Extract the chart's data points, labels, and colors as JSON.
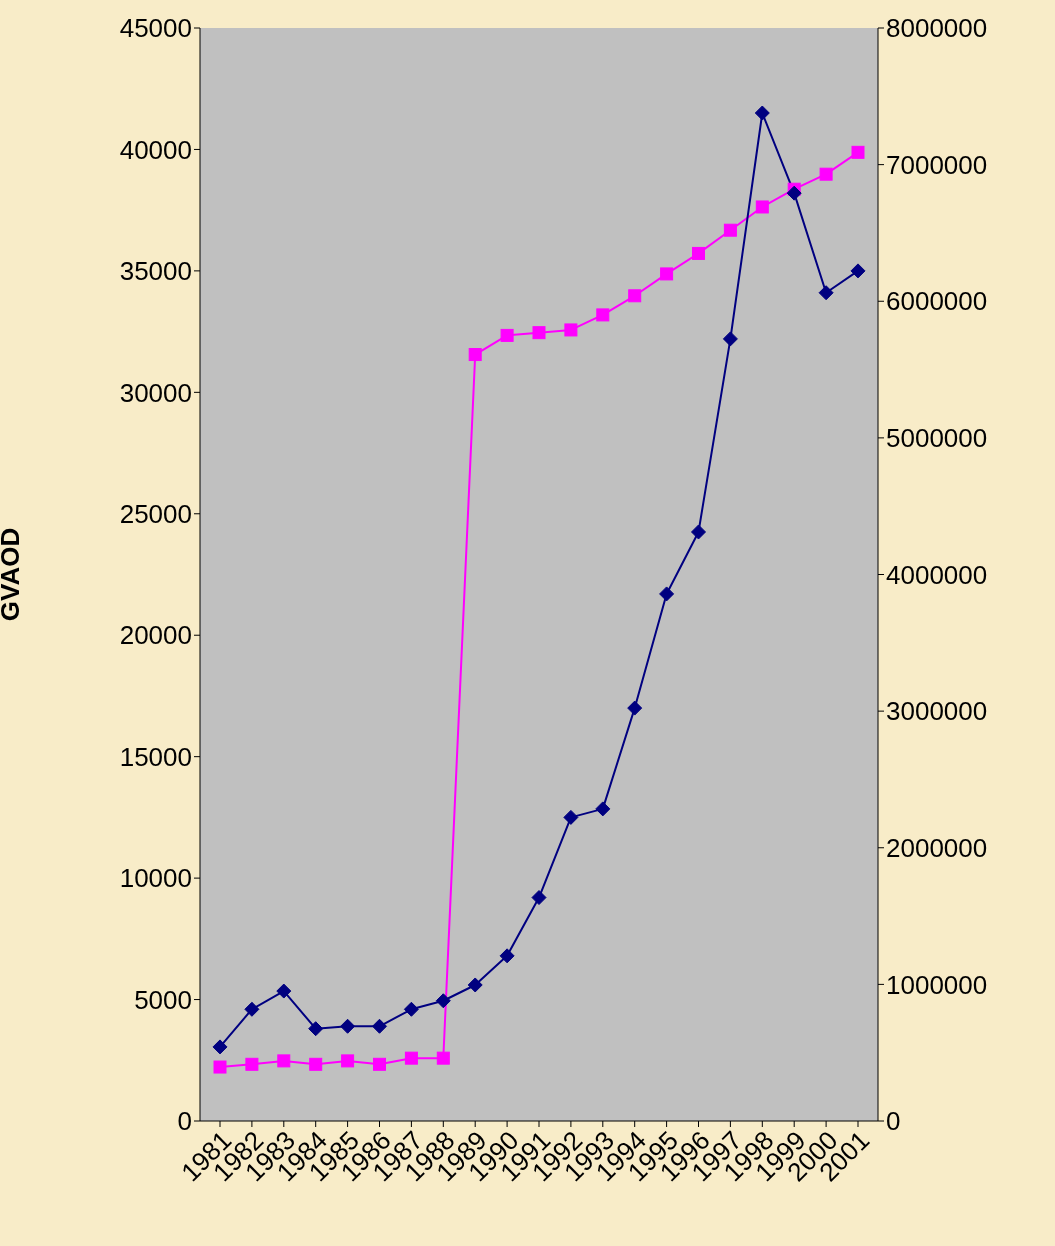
{
  "chart_data": {
    "type": "line",
    "ylabel": "GVAOD",
    "categories": [
      "1981",
      "1982",
      "1983",
      "1984",
      "1985",
      "1986",
      "1987",
      "1988",
      "1989",
      "1990",
      "1991",
      "1992",
      "1993",
      "1994",
      "1995",
      "1996",
      "1997",
      "1998",
      "1999",
      "2000",
      "2001"
    ],
    "series": [
      {
        "color": "#000080",
        "marker": "diamond",
        "values": [
          3050,
          4600,
          5350,
          3800,
          3900,
          3900,
          4600,
          4950,
          5600,
          6800,
          9200,
          12500,
          12850,
          17000,
          21700,
          24250,
          32200,
          41500,
          38200,
          34100,
          35000
        ]
      },
      {
        "color": "#ff00ff",
        "marker": "square",
        "axis": "y2",
        "values": [
          395000,
          415000,
          440000,
          415000,
          440000,
          415000,
          460000,
          460000,
          5610000,
          5750000,
          5770000,
          5790000,
          5900000,
          6040000,
          6200000,
          6350000,
          6520000,
          6690000,
          6820000,
          6930000,
          7090000
        ]
      }
    ],
    "ylim": [
      0,
      45000
    ],
    "yticks": [
      0,
      5000,
      10000,
      15000,
      20000,
      25000,
      30000,
      35000,
      40000,
      45000
    ],
    "y2lim": [
      0,
      8000000
    ],
    "y2ticks": [
      0,
      1000000,
      2000000,
      3000000,
      4000000,
      5000000,
      6000000,
      7000000,
      8000000
    ],
    "grid": false,
    "legend": false
  }
}
